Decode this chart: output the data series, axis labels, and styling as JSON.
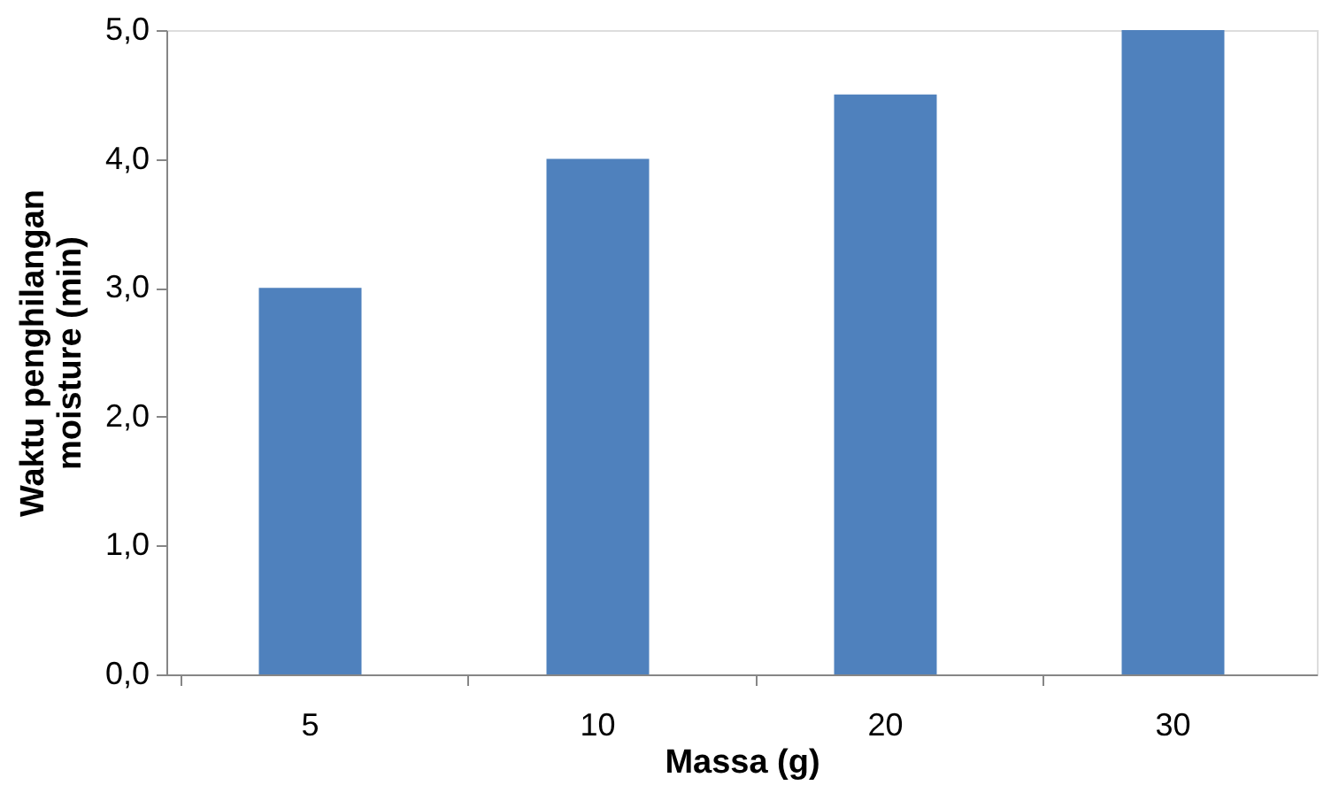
{
  "chart_data": {
    "type": "bar",
    "xlabel": "Massa (g)",
    "ylabel": "Waktu penghilangan\nmoisture (min)",
    "categories": [
      "5",
      "10",
      "20",
      "30"
    ],
    "series": [
      {
        "color": "#4f81bd",
        "values": [
          3.0,
          4.0,
          4.5,
          5.0
        ]
      }
    ],
    "ylim": [
      0,
      5
    ],
    "yticks": [
      {
        "value": 0,
        "label": "0,0"
      },
      {
        "value": 1,
        "label": "1,0"
      },
      {
        "value": 2,
        "label": "2,0"
      },
      {
        "value": 3,
        "label": "3,0"
      },
      {
        "value": 4,
        "label": "4,0"
      },
      {
        "value": 5,
        "label": "5,0"
      }
    ],
    "grid": false,
    "legend": false
  }
}
